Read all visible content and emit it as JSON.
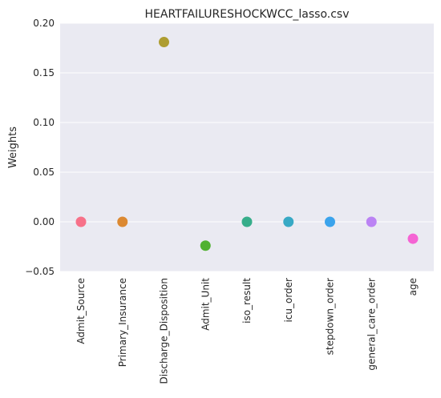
{
  "chart_data": {
    "type": "scatter",
    "title": "HEARTFAILURESHOCKWCC_lasso.csv",
    "xlabel": "",
    "ylabel": "Weights",
    "ylim": [
      -0.05,
      0.2
    ],
    "yticks": [
      -0.05,
      0.0,
      0.05,
      0.1,
      0.15,
      0.2
    ],
    "ytick_labels": [
      "−0.05",
      "0.00",
      "0.05",
      "0.10",
      "0.15",
      "0.20"
    ],
    "grid": true,
    "background": "#eaeaf2",
    "categories": [
      "Admit_Source",
      "Primary_Insurance",
      "Discharge_Disposition",
      "Admit_Unit",
      "iso_result",
      "icu_order",
      "stepdown_order",
      "general_care_order",
      "age"
    ],
    "values": [
      0.0,
      0.0,
      0.181,
      -0.024,
      0.0,
      0.0,
      0.0,
      0.0,
      -0.017
    ],
    "colors": [
      "#f77189",
      "#dc8932",
      "#ae9d31",
      "#50b131",
      "#36ad8a",
      "#38a9c5",
      "#3ba3ec",
      "#bb83f4",
      "#f564d4"
    ]
  }
}
